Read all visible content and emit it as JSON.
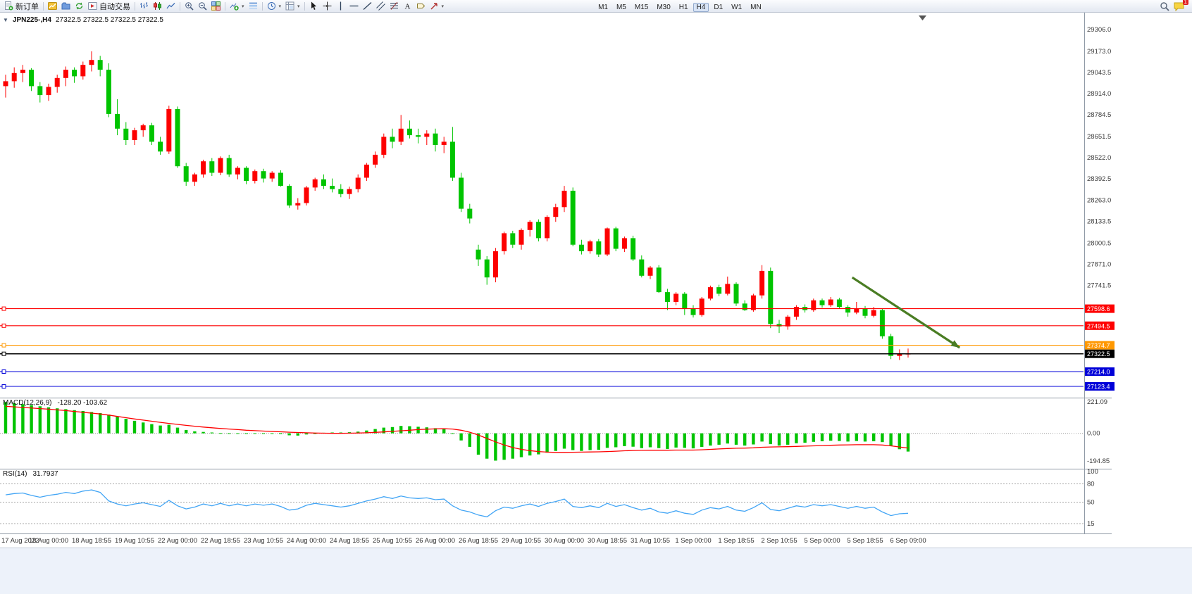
{
  "toolbar": {
    "new_order_label": "新订单",
    "auto_trading_label": "自动交易",
    "timeframes": [
      "M1",
      "M5",
      "M15",
      "M30",
      "H1",
      "H4",
      "D1",
      "W1",
      "MN"
    ],
    "active_timeframe": "H4",
    "notification_badge": "1"
  },
  "chart_header": {
    "collapse_icon": "▼",
    "symbol_timeframe": "JPN225-,H4",
    "ohlc": "27322.5 27322.5 27322.5 27322.5"
  },
  "chart_data": {
    "type": "candlestick",
    "symbol": "JPN225-",
    "timeframe": "H4",
    "colors": {
      "up": "#fd0000",
      "down": "#00c400"
    },
    "y_ticks": [
      29306.0,
      29173.0,
      29043.5,
      28914.0,
      28784.5,
      28651.5,
      28522.0,
      28392.5,
      28263.0,
      28133.5,
      28000.5,
      27871.0,
      27741.5
    ],
    "x_labels": [
      "17 Aug 2022",
      "18 Aug 00:00",
      "18 Aug 18:55",
      "19 Aug 10:55",
      "22 Aug 00:00",
      "22 Aug 18:55",
      "23 Aug 10:55",
      "24 Aug 00:00",
      "24 Aug 18:55",
      "25 Aug 10:55",
      "26 Aug 00:00",
      "26 Aug 18:55",
      "29 Aug 10:55",
      "30 Aug 00:00",
      "30 Aug 18:55",
      "31 Aug 10:55",
      "1 Sep 00:00",
      "1 Sep 18:55",
      "2 Sep 10:55",
      "5 Sep 00:00",
      "5 Sep 18:55",
      "6 Sep 09:00"
    ],
    "levels": [
      {
        "price": 27598.6,
        "label": "27598.6",
        "color": "#fe0000"
      },
      {
        "price": 27494.5,
        "label": "27494.5",
        "color": "#fe0000"
      },
      {
        "price": 27374.7,
        "label": "27374.7",
        "color": "#ff9800"
      },
      {
        "price": 27322.5,
        "label": "27322.5",
        "color": "#000000"
      },
      {
        "price": 27214.0,
        "label": "27214.0",
        "color": "#0000d8"
      },
      {
        "price": 27123.4,
        "label": "27123.4",
        "color": "#0000d8"
      }
    ],
    "trend_arrow": {
      "from_index": 98.5,
      "from_price": 27790,
      "to_index": 111,
      "to_price": 27360,
      "color": "#4a7d23"
    },
    "candles": [
      [
        28960,
        29030,
        28890,
        28990
      ],
      [
        28990,
        29075,
        28950,
        29040
      ],
      [
        29040,
        29090,
        28985,
        29060
      ],
      [
        29060,
        29070,
        28930,
        28960
      ],
      [
        28960,
        28985,
        28860,
        28905
      ],
      [
        28905,
        28975,
        28870,
        28955
      ],
      [
        28955,
        29030,
        28920,
        29010
      ],
      [
        29010,
        29080,
        28960,
        29060
      ],
      [
        29060,
        29075,
        28980,
        29020
      ],
      [
        29020,
        29110,
        29000,
        29090
      ],
      [
        29090,
        29173,
        29050,
        29120
      ],
      [
        29120,
        29145,
        29020,
        29060
      ],
      [
        29060,
        29100,
        28770,
        28790
      ],
      [
        28790,
        28880,
        28660,
        28700
      ],
      [
        28700,
        28740,
        28600,
        28630
      ],
      [
        28630,
        28705,
        28600,
        28690
      ],
      [
        28690,
        28730,
        28650,
        28720
      ],
      [
        28720,
        28735,
        28600,
        28620
      ],
      [
        28620,
        28650,
        28540,
        28560
      ],
      [
        28560,
        28840,
        28545,
        28820
      ],
      [
        28820,
        28835,
        28460,
        28470
      ],
      [
        28470,
        28490,
        28350,
        28375
      ],
      [
        28375,
        28430,
        28350,
        28420
      ],
      [
        28420,
        28510,
        28400,
        28500
      ],
      [
        28500,
        28520,
        28410,
        28430
      ],
      [
        28430,
        28530,
        28415,
        28520
      ],
      [
        28520,
        28540,
        28405,
        28420
      ],
      [
        28420,
        28470,
        28390,
        28460
      ],
      [
        28460,
        28470,
        28360,
        28380
      ],
      [
        28380,
        28450,
        28365,
        28440
      ],
      [
        28440,
        28455,
        28370,
        28395
      ],
      [
        28395,
        28440,
        28375,
        28430
      ],
      [
        28430,
        28445,
        28345,
        28350
      ],
      [
        28350,
        28360,
        28215,
        28230
      ],
      [
        28230,
        28275,
        28205,
        28245
      ],
      [
        28245,
        28350,
        28230,
        28340
      ],
      [
        28340,
        28400,
        28320,
        28390
      ],
      [
        28390,
        28420,
        28330,
        28350
      ],
      [
        28350,
        28395,
        28310,
        28330
      ],
      [
        28330,
        28360,
        28280,
        28300
      ],
      [
        28300,
        28345,
        28270,
        28330
      ],
      [
        28330,
        28420,
        28310,
        28400
      ],
      [
        28400,
        28490,
        28380,
        28480
      ],
      [
        28480,
        28560,
        28460,
        28540
      ],
      [
        28540,
        28670,
        28520,
        28650
      ],
      [
        28650,
        28700,
        28580,
        28620
      ],
      [
        28620,
        28784,
        28600,
        28700
      ],
      [
        28700,
        28750,
        28640,
        28660
      ],
      [
        28660,
        28700,
        28610,
        28650
      ],
      [
        28650,
        28690,
        28600,
        28670
      ],
      [
        28670,
        28700,
        28560,
        28600
      ],
      [
        28600,
        28650,
        28550,
        28620
      ],
      [
        28620,
        28710,
        28380,
        28400
      ],
      [
        28400,
        28430,
        28190,
        28210
      ],
      [
        28210,
        28240,
        28120,
        28150
      ],
      [
        27960,
        27990,
        27860,
        27900
      ],
      [
        27900,
        27920,
        27745,
        27790
      ],
      [
        27790,
        27970,
        27760,
        27950
      ],
      [
        27950,
        28070,
        27930,
        28060
      ],
      [
        28060,
        28075,
        27970,
        27990
      ],
      [
        27990,
        28090,
        27960,
        28080
      ],
      [
        28080,
        28140,
        28040,
        28130
      ],
      [
        28130,
        28145,
        28010,
        28030
      ],
      [
        28030,
        28170,
        28010,
        28160
      ],
      [
        28160,
        28240,
        28130,
        28220
      ],
      [
        28220,
        28350,
        28190,
        28320
      ],
      [
        28320,
        28340,
        27980,
        27990
      ],
      [
        27990,
        28020,
        27930,
        27950
      ],
      [
        27950,
        28020,
        27935,
        28010
      ],
      [
        28010,
        28025,
        27915,
        27930
      ],
      [
        27930,
        28095,
        27920,
        28090
      ],
      [
        28090,
        28100,
        27950,
        27965
      ],
      [
        27965,
        28040,
        27945,
        28030
      ],
      [
        28030,
        28045,
        27890,
        27900
      ],
      [
        27900,
        27925,
        27790,
        27800
      ],
      [
        27800,
        27860,
        27780,
        27850
      ],
      [
        27850,
        27865,
        27695,
        27700
      ],
      [
        27700,
        27720,
        27590,
        27640
      ],
      [
        27640,
        27700,
        27620,
        27690
      ],
      [
        27690,
        27700,
        27560,
        27600
      ],
      [
        27600,
        27620,
        27545,
        27560
      ],
      [
        27560,
        27670,
        27550,
        27660
      ],
      [
        27660,
        27740,
        27650,
        27730
      ],
      [
        27730,
        27745,
        27675,
        27690
      ],
      [
        27690,
        27795,
        27680,
        27750
      ],
      [
        27750,
        27760,
        27615,
        27630
      ],
      [
        27630,
        27650,
        27585,
        27590
      ],
      [
        27590,
        27690,
        27580,
        27680
      ],
      [
        27680,
        27865,
        27660,
        27830
      ],
      [
        27830,
        27850,
        27480,
        27505
      ],
      [
        27505,
        27530,
        27450,
        27490
      ],
      [
        27490,
        27560,
        27470,
        27550
      ],
      [
        27550,
        27620,
        27530,
        27610
      ],
      [
        27610,
        27625,
        27575,
        27590
      ],
      [
        27590,
        27660,
        27580,
        27650
      ],
      [
        27650,
        27660,
        27605,
        27620
      ],
      [
        27620,
        27670,
        27610,
        27655
      ],
      [
        27655,
        27665,
        27600,
        27610
      ],
      [
        27610,
        27620,
        27550,
        27575
      ],
      [
        27575,
        27640,
        27565,
        27600
      ],
      [
        27600,
        27615,
        27540,
        27555
      ],
      [
        27555,
        27610,
        27545,
        27590
      ],
      [
        27590,
        27600,
        27415,
        27430
      ],
      [
        27430,
        27445,
        27290,
        27310
      ],
      [
        27310,
        27350,
        27285,
        27320
      ],
      [
        27320,
        27355,
        27300,
        27322.5
      ]
    ],
    "macd": {
      "label": "MACD(12,26,9)",
      "current_values": "-128.20 -103.62",
      "hist_color": "#00c400",
      "signal_color": "#fe0000",
      "scale": [
        {
          "v": 221.09,
          "label": "221.09"
        },
        {
          "v": 0,
          "label": "0.00"
        },
        {
          "v": -194.85,
          "label": "-194.85"
        }
      ],
      "hist": [
        220,
        212,
        205,
        198,
        190,
        183,
        176,
        170,
        163,
        157,
        150,
        142,
        132,
        118,
        102,
        88,
        76,
        65,
        55,
        60,
        40,
        24,
        14,
        10,
        6,
        2,
        0,
        -2,
        -3,
        -4,
        -5,
        -4,
        -6,
        -14,
        -16,
        -8,
        0,
        4,
        6,
        6,
        8,
        12,
        20,
        30,
        40,
        44,
        52,
        50,
        46,
        42,
        36,
        32,
        0,
        -50,
        -95,
        -150,
        -178,
        -192,
        -186,
        -178,
        -168,
        -156,
        -148,
        -136,
        -124,
        -108,
        -118,
        -124,
        -118,
        -116,
        -102,
        -98,
        -90,
        -94,
        -104,
        -98,
        -104,
        -110,
        -100,
        -102,
        -106,
        -96,
        -86,
        -80,
        -72,
        -80,
        -86,
        -78,
        -58,
        -76,
        -86,
        -80,
        -70,
        -66,
        -60,
        -56,
        -52,
        -54,
        -58,
        -54,
        -58,
        -56,
        -62,
        -88,
        -112,
        -128.2
      ],
      "signal": [
        190,
        186,
        182,
        178,
        174,
        170,
        165,
        160,
        154,
        148,
        142,
        136,
        128,
        119,
        110,
        101,
        93,
        85,
        77,
        70,
        63,
        56,
        50,
        44,
        39,
        34,
        30,
        26,
        22,
        19,
        16,
        13,
        11,
        8,
        6,
        4,
        2,
        1,
        0,
        0,
        1,
        2,
        4,
        7,
        10,
        14,
        18,
        22,
        26,
        29,
        31,
        32,
        30,
        22,
        8,
        -12,
        -36,
        -60,
        -82,
        -100,
        -113,
        -122,
        -128,
        -132,
        -134,
        -134,
        -133,
        -132,
        -131,
        -130,
        -128,
        -126,
        -123,
        -121,
        -120,
        -119,
        -119,
        -119,
        -118,
        -118,
        -118,
        -116,
        -113,
        -110,
        -107,
        -105,
        -104,
        -102,
        -98,
        -96,
        -95,
        -94,
        -92,
        -90,
        -88,
        -86,
        -84,
        -82,
        -81,
        -80,
        -80,
        -80,
        -82,
        -88,
        -96,
        -103.62
      ]
    },
    "rsi": {
      "label": "RSI(14)",
      "current_value": "31.7937",
      "line_color": "#42a5f5",
      "levels": [
        80,
        50,
        15
      ],
      "scale_labels": [
        {
          "v": 100,
          "label": "100"
        },
        {
          "v": 80,
          "label": "80"
        },
        {
          "v": 50,
          "label": "50"
        },
        {
          "v": 15,
          "label": "15"
        }
      ],
      "values": [
        62,
        64,
        65,
        61,
        58,
        61,
        63,
        66,
        64,
        68,
        70,
        66,
        52,
        47,
        44,
        47,
        49,
        46,
        43,
        53,
        44,
        39,
        42,
        47,
        44,
        48,
        44,
        47,
        44,
        47,
        45,
        47,
        43,
        37,
        39,
        45,
        48,
        46,
        44,
        42,
        44,
        48,
        52,
        55,
        59,
        56,
        60,
        57,
        56,
        57,
        54,
        55,
        44,
        37,
        34,
        29,
        26,
        36,
        42,
        40,
        44,
        47,
        43,
        48,
        51,
        55,
        43,
        41,
        44,
        41,
        48,
        43,
        46,
        41,
        37,
        40,
        34,
        32,
        36,
        32,
        30,
        37,
        41,
        39,
        43,
        37,
        35,
        41,
        49,
        38,
        36,
        40,
        44,
        42,
        46,
        44,
        46,
        43,
        40,
        43,
        40,
        42,
        34,
        28,
        31,
        31.79
      ]
    }
  }
}
